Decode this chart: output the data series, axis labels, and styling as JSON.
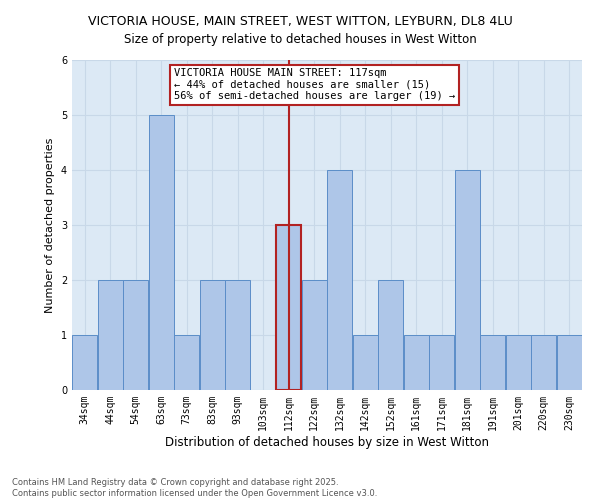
{
  "title1": "VICTORIA HOUSE, MAIN STREET, WEST WITTON, LEYBURN, DL8 4LU",
  "title2": "Size of property relative to detached houses in West Witton",
  "xlabel": "Distribution of detached houses by size in West Witton",
  "ylabel": "Number of detached properties",
  "categories": [
    "34sqm",
    "44sqm",
    "54sqm",
    "63sqm",
    "73sqm",
    "83sqm",
    "93sqm",
    "103sqm",
    "112sqm",
    "122sqm",
    "132sqm",
    "142sqm",
    "152sqm",
    "161sqm",
    "171sqm",
    "181sqm",
    "191sqm",
    "201sqm",
    "220sqm",
    "230sqm"
  ],
  "values": [
    1,
    2,
    2,
    5,
    1,
    2,
    2,
    0,
    3,
    2,
    4,
    1,
    2,
    1,
    1,
    4,
    1,
    1,
    1,
    1
  ],
  "bar_color": "#aec6e8",
  "bar_edge_color": "#5b8dc8",
  "highlight_index": 8,
  "highlight_line_color": "#b22222",
  "annotation_text": "VICTORIA HOUSE MAIN STREET: 117sqm\n← 44% of detached houses are smaller (15)\n56% of semi-detached houses are larger (19) →",
  "annotation_box_color": "#b22222",
  "ylim": [
    0,
    6
  ],
  "yticks": [
    0,
    1,
    2,
    3,
    4,
    5,
    6
  ],
  "grid_color": "#c8d8e8",
  "background_color": "#dce9f5",
  "footer_text": "Contains HM Land Registry data © Crown copyright and database right 2025.\nContains public sector information licensed under the Open Government Licence v3.0.",
  "title_fontsize": 9,
  "subtitle_fontsize": 8.5,
  "xlabel_fontsize": 8.5,
  "ylabel_fontsize": 8,
  "tick_fontsize": 7,
  "annotation_fontsize": 7.5,
  "footer_fontsize": 6
}
